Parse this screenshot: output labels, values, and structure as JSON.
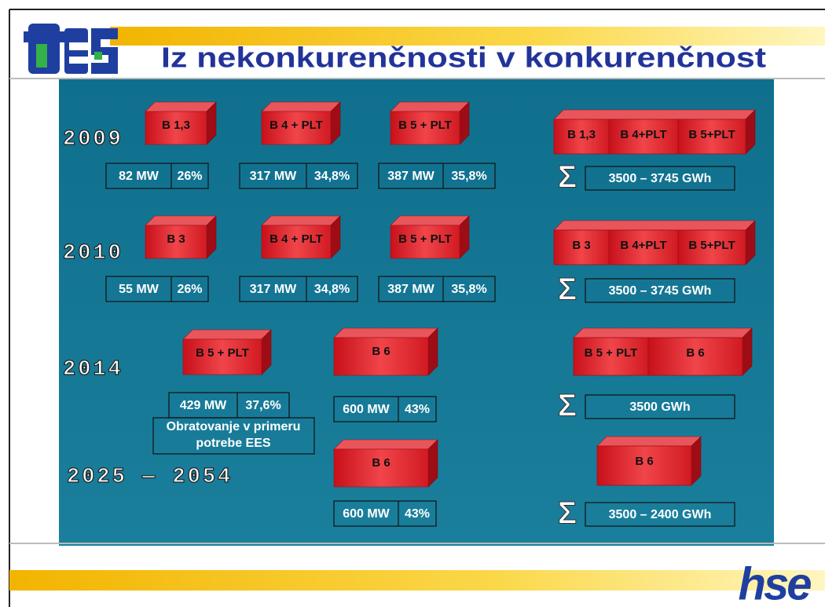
{
  "header": {
    "title": "Iz nekonkurenčnosti v konkurenčnost",
    "logo": "hse"
  },
  "sigma": "Σ",
  "rows": [
    {
      "period": "2009",
      "units": [
        {
          "label": "B 1,3",
          "power": "82 MW",
          "efficiency": "26%"
        },
        {
          "label": "B 4 + PLT",
          "power": "317 MW",
          "efficiency": "34,8%"
        },
        {
          "label": "B 5 + PLT",
          "power": "387 MW",
          "efficiency": "35,8%"
        }
      ],
      "total": {
        "blocks": [
          "B 1,3",
          "B 4+PLT",
          "B 5+PLT"
        ],
        "energy": "3500 – 3745 GWh"
      }
    },
    {
      "period": "2010",
      "units": [
        {
          "label": "B 3",
          "power": "55 MW",
          "efficiency": "26%"
        },
        {
          "label": "B 4 + PLT",
          "power": "317 MW",
          "efficiency": "34,8%"
        },
        {
          "label": "B 5 + PLT",
          "power": "387 MW",
          "efficiency": "35,8%"
        }
      ],
      "total": {
        "blocks": [
          "B 3",
          "B 4+PLT",
          "B 5+PLT"
        ],
        "energy": "3500 – 3745 GWh"
      }
    },
    {
      "period": "2014",
      "units": [
        {
          "label": "B 5 + PLT",
          "power": "429 MW",
          "efficiency": "37,6%",
          "note": [
            "Obratovanje v primeru",
            "potrebe EES"
          ]
        },
        {
          "label": "B 6",
          "power": "600 MW",
          "efficiency": "43%"
        }
      ],
      "total": {
        "blocks": [
          "B 5 + PLT",
          "B 6"
        ],
        "energy": "3500 GWh"
      }
    },
    {
      "period": "2025 — 2054",
      "units": [
        {
          "label": "B 6",
          "power": "600 MW",
          "efficiency": "43%"
        }
      ],
      "total": {
        "blocks": [
          "B 6"
        ],
        "energy": "3500 – 2400 GWh"
      }
    }
  ]
}
